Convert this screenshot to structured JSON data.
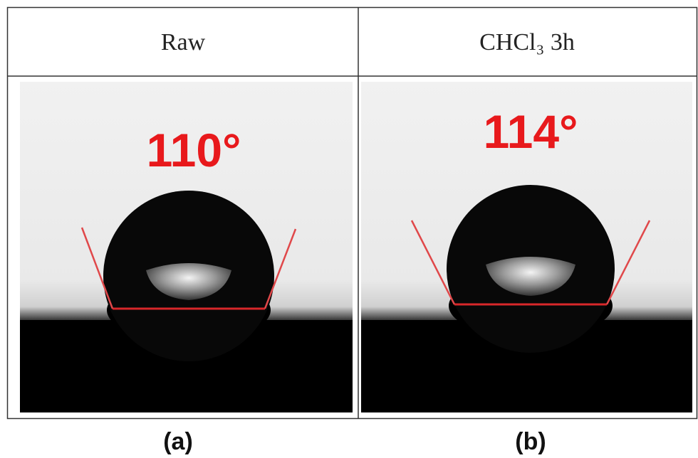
{
  "panels": [
    {
      "header": "Raw",
      "angle": "110°",
      "caption": "(a)"
    },
    {
      "header": "CHCl₃  3h",
      "angle": "114°",
      "caption": "(b)"
    }
  ]
}
